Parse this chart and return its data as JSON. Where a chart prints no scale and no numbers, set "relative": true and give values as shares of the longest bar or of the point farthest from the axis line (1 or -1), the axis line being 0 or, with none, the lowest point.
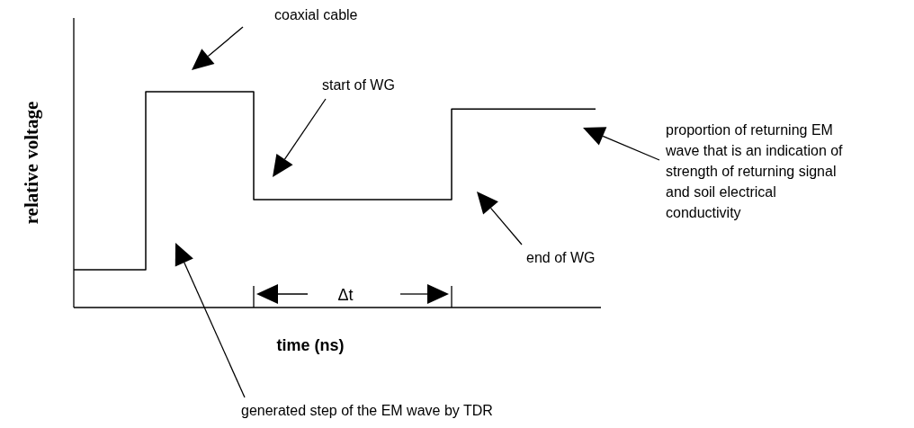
{
  "chart_data": {
    "type": "step",
    "relative": true,
    "xlabel": "time (ns)",
    "ylabel": "relative voltage",
    "categories": [
      null,
      null,
      null,
      null,
      null,
      null,
      null,
      null,
      null,
      null,
      null,
      null,
      null,
      null,
      null,
      null,
      null,
      null,
      null,
      null,
      null,
      null,
      null,
      null,
      null,
      null,
      null,
      null,
      null,
      null
    ],
    "values": [
      0.175,
      0.175,
      0.175,
      0.175,
      1,
      1,
      1,
      1,
      1,
      1,
      0.5,
      0.5,
      0.5,
      0.5,
      0.5,
      0.5,
      0.5,
      0.5,
      0.5,
      0.5,
      0.5,
      0.92,
      0.92,
      0.92,
      0.92,
      0.92,
      0.92,
      0.92,
      0.92,
      0.92
    ],
    "color": "#000000",
    "annotations": [
      "coaxial cable",
      "start of WG",
      "end of WG",
      "proportion of returning EM wave that is an indication of strength of returning signal and soil electrical conductivity",
      "generated step of the EM wave by TDR",
      "Δt"
    ]
  }
}
